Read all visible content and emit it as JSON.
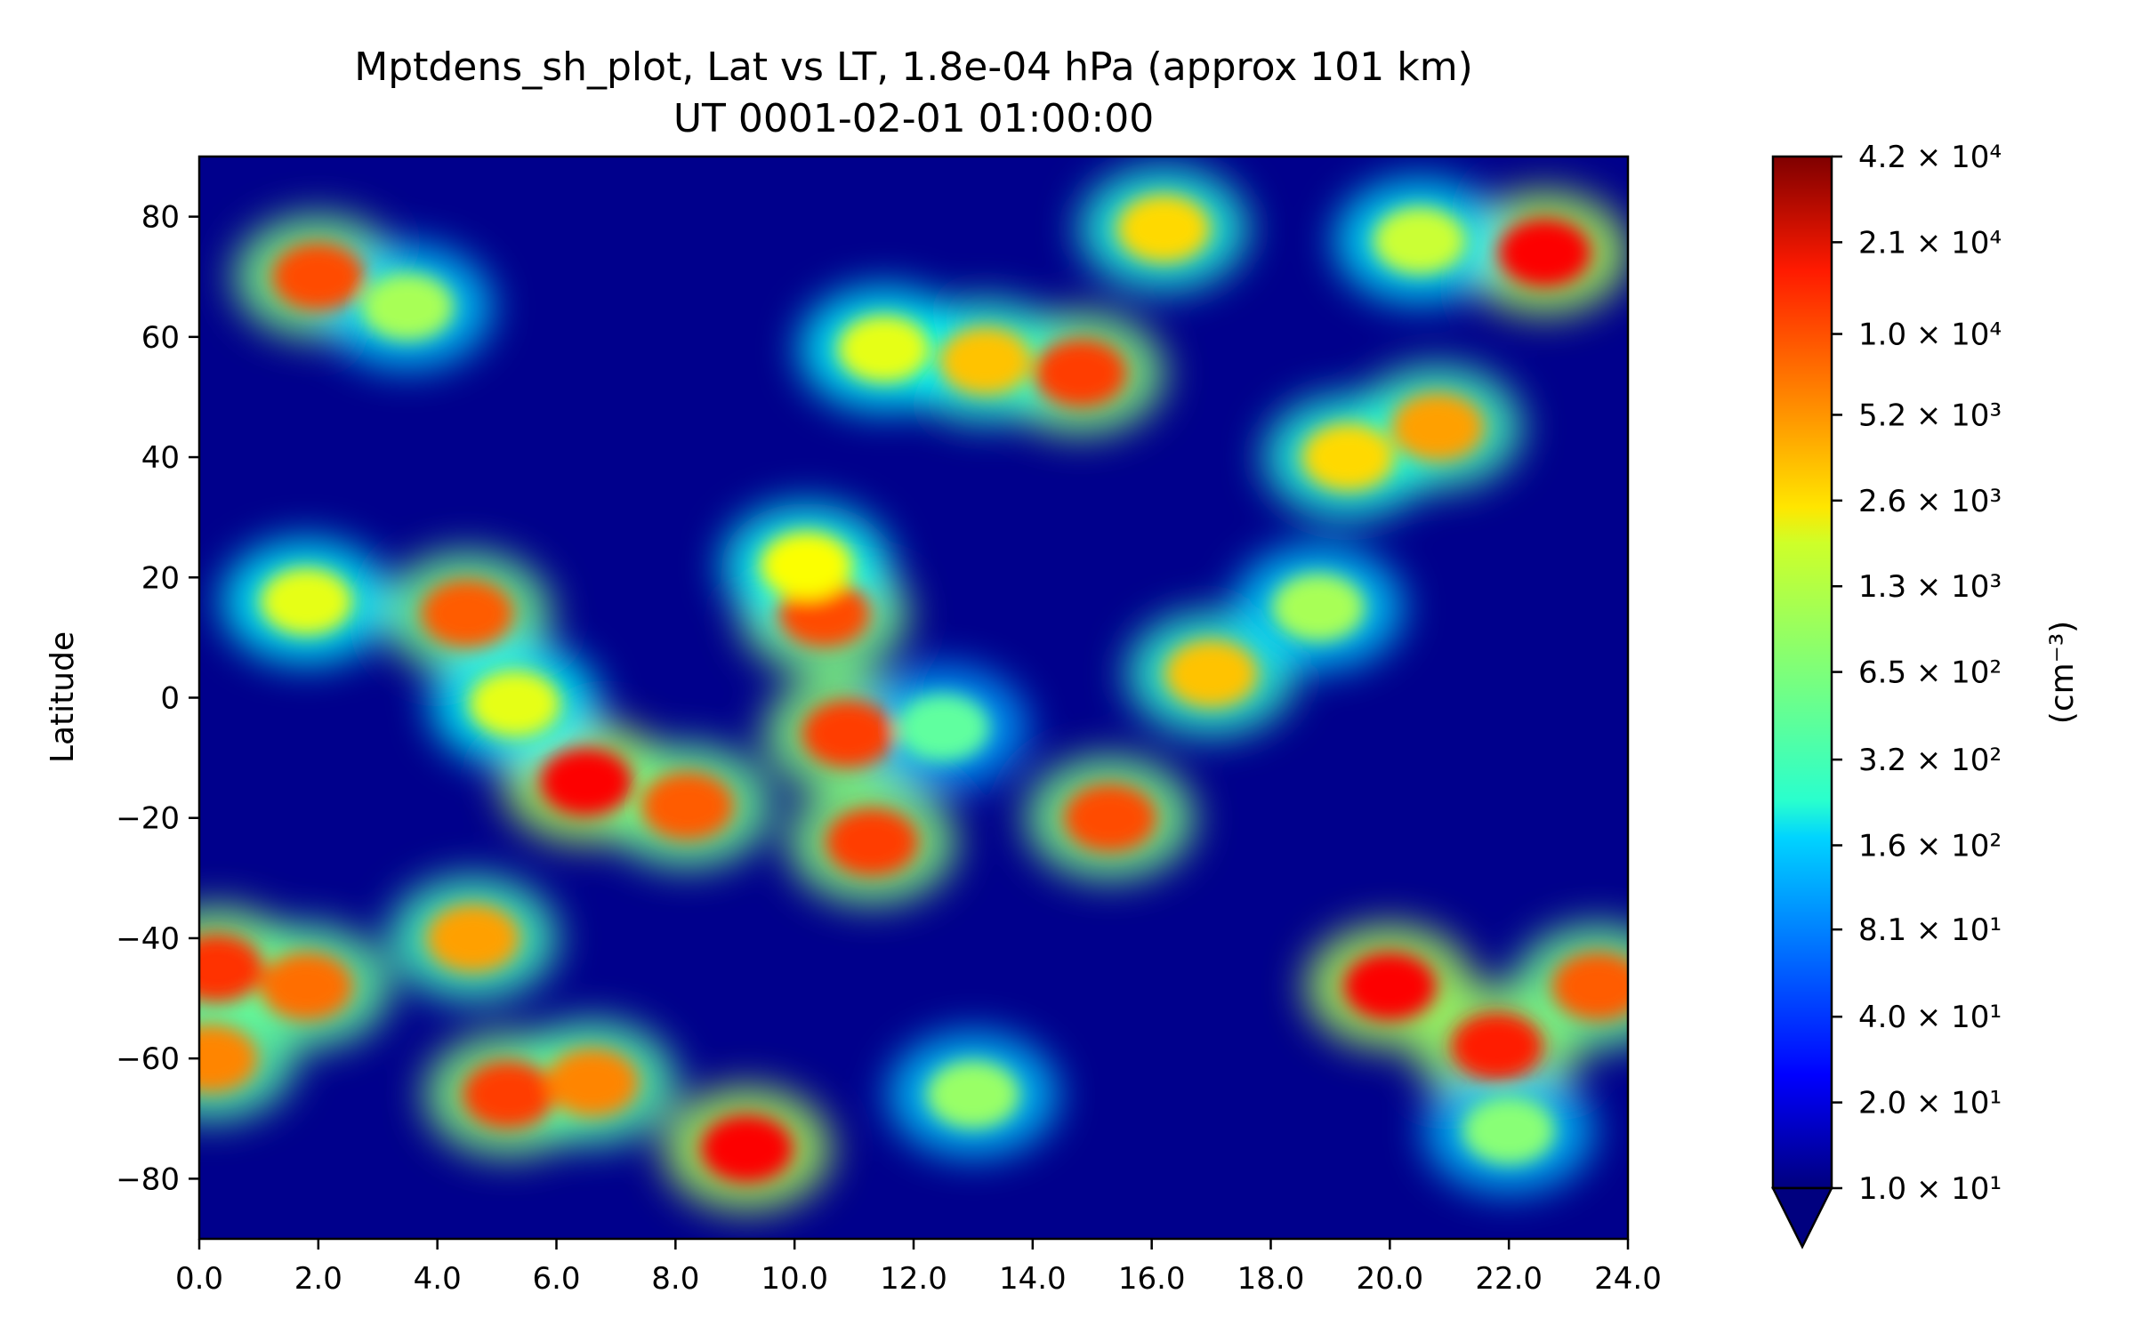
{
  "chart_data": {
    "type": "heatmap",
    "title": "Mptdens_sh_plot, Lat vs LT, 1.8e-04 hPa (approx 101 km)",
    "subtitle": "UT 0001-02-01 01:00:00",
    "xlabel": "",
    "ylabel": "Latitude",
    "xlim": [
      0,
      24
    ],
    "ylim": [
      -90,
      90
    ],
    "x_ticks": [
      "0.0",
      "2.0",
      "4.0",
      "6.0",
      "8.0",
      "10.0",
      "12.0",
      "14.0",
      "16.0",
      "18.0",
      "20.0",
      "22.0",
      "24.0"
    ],
    "y_ticks": [
      "80",
      "60",
      "40",
      "20",
      "0",
      "−20",
      "−40",
      "−60",
      "−80"
    ],
    "colorbar": {
      "label": "(cm⁻³)",
      "scale": "log",
      "colormap": "jet",
      "extend": "min",
      "tick_labels": [
        "1.0 × 10¹",
        "2.0 × 10¹",
        "4.0 × 10¹",
        "8.1 × 10¹",
        "1.6 × 10²",
        "3.2 × 10²",
        "6.5 × 10²",
        "1.3 × 10³",
        "2.6 × 10³",
        "5.2 × 10³",
        "1.0 × 10⁴",
        "2.1 × 10⁴",
        "4.2 × 10⁴"
      ],
      "tick_values": [
        10,
        20,
        40,
        81,
        160,
        320,
        650,
        1300,
        2600,
        5200,
        10000,
        21000,
        42000
      ]
    },
    "features": [
      {
        "lt": 2.0,
        "lat": 70,
        "value": 8000
      },
      {
        "lt": 3.5,
        "lat": 65,
        "value": 900
      },
      {
        "lt": 22.6,
        "lat": 74,
        "value": 15000
      },
      {
        "lt": 20.5,
        "lat": 76,
        "value": 1200
      },
      {
        "lt": 16.2,
        "lat": 78,
        "value": 2500
      },
      {
        "lt": 14.8,
        "lat": 54,
        "value": 9000
      },
      {
        "lt": 13.2,
        "lat": 56,
        "value": 3000
      },
      {
        "lt": 11.5,
        "lat": 58,
        "value": 1500
      },
      {
        "lt": 20.8,
        "lat": 45,
        "value": 4000
      },
      {
        "lt": 19.3,
        "lat": 40,
        "value": 2500
      },
      {
        "lt": 4.5,
        "lat": 14,
        "value": 7000
      },
      {
        "lt": 1.8,
        "lat": 16,
        "value": 1500
      },
      {
        "lt": 6.5,
        "lat": -14,
        "value": 15000
      },
      {
        "lt": 8.2,
        "lat": -18,
        "value": 7000
      },
      {
        "lt": 5.3,
        "lat": -1,
        "value": 1500
      },
      {
        "lt": 10.5,
        "lat": 14,
        "value": 8000
      },
      {
        "lt": 10.9,
        "lat": -6,
        "value": 9000
      },
      {
        "lt": 11.3,
        "lat": -24,
        "value": 9000
      },
      {
        "lt": 10.2,
        "lat": 22,
        "value": 1800
      },
      {
        "lt": 15.3,
        "lat": -20,
        "value": 8000
      },
      {
        "lt": 17.0,
        "lat": 4,
        "value": 3000
      },
      {
        "lt": 18.8,
        "lat": 15,
        "value": 900
      },
      {
        "lt": 20.0,
        "lat": -48,
        "value": 15000
      },
      {
        "lt": 21.8,
        "lat": -58,
        "value": 12000
      },
      {
        "lt": 23.5,
        "lat": -48,
        "value": 7000
      },
      {
        "lt": 0.3,
        "lat": -45,
        "value": 10000
      },
      {
        "lt": 0.2,
        "lat": -60,
        "value": 5000
      },
      {
        "lt": 1.8,
        "lat": -48,
        "value": 6000
      },
      {
        "lt": 4.6,
        "lat": -40,
        "value": 4000
      },
      {
        "lt": 5.2,
        "lat": -66,
        "value": 9000
      },
      {
        "lt": 6.6,
        "lat": -64,
        "value": 5000
      },
      {
        "lt": 9.2,
        "lat": -75,
        "value": 15000
      },
      {
        "lt": 13.0,
        "lat": -66,
        "value": 800
      },
      {
        "lt": 22.0,
        "lat": -72,
        "value": 700
      },
      {
        "lt": 12.5,
        "lat": -5,
        "value": 500
      }
    ]
  }
}
